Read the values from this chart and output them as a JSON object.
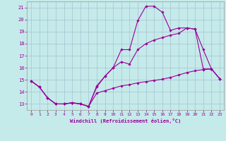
{
  "xlabel": "Windchill (Refroidissement éolien,°C)",
  "xlim": [
    -0.5,
    23.5
  ],
  "ylim": [
    12.5,
    21.5
  ],
  "xticks": [
    0,
    1,
    2,
    3,
    4,
    5,
    6,
    7,
    8,
    9,
    10,
    11,
    12,
    13,
    14,
    15,
    16,
    17,
    18,
    19,
    20,
    21,
    22,
    23
  ],
  "yticks": [
    13,
    14,
    15,
    16,
    17,
    18,
    19,
    20,
    21
  ],
  "background_color": "#c5eaea",
  "grid_color": "#a0b8cc",
  "line_color": "#990099",
  "curve1_y": [
    14.9,
    14.4,
    13.5,
    13.0,
    13.0,
    13.1,
    13.0,
    12.8,
    13.9,
    14.1,
    14.3,
    14.5,
    14.6,
    14.75,
    14.85,
    14.95,
    15.05,
    15.2,
    15.4,
    15.6,
    15.75,
    15.85,
    15.9,
    15.1
  ],
  "curve2_y": [
    14.9,
    14.4,
    13.5,
    13.0,
    13.0,
    13.1,
    13.0,
    12.8,
    14.4,
    15.3,
    16.0,
    16.5,
    16.3,
    17.5,
    18.0,
    18.3,
    18.5,
    18.7,
    18.85,
    19.3,
    19.2,
    17.5,
    15.9,
    15.1
  ],
  "curve3_y": [
    14.9,
    14.4,
    13.5,
    13.0,
    13.0,
    13.1,
    13.0,
    12.8,
    14.5,
    15.3,
    16.0,
    17.5,
    17.5,
    19.9,
    21.1,
    21.1,
    20.6,
    19.1,
    19.3,
    19.3,
    19.2,
    15.9,
    15.9,
    15.1
  ]
}
